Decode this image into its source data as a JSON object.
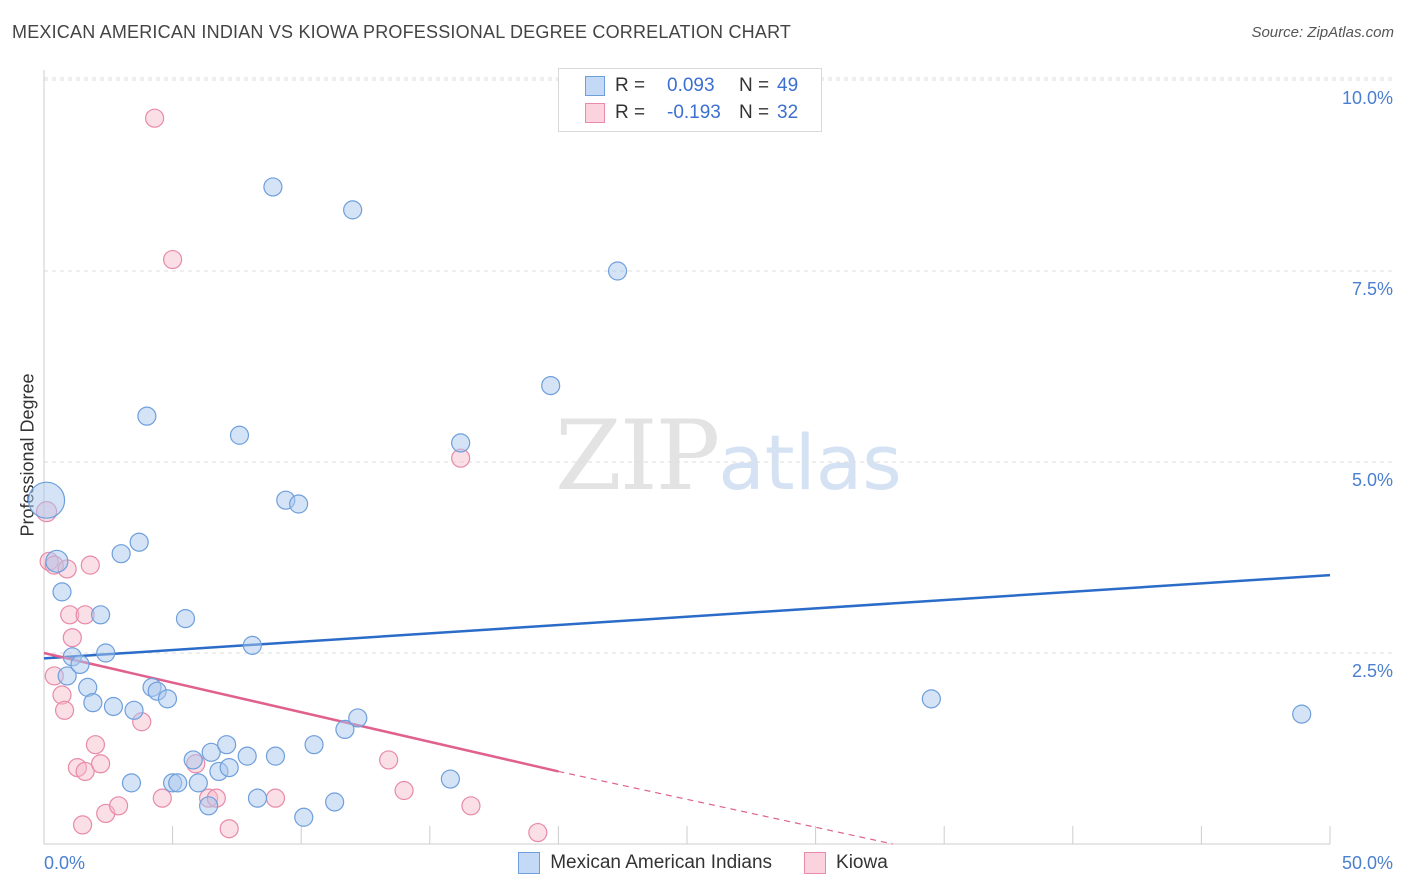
{
  "title": "MEXICAN AMERICAN INDIAN VS KIOWA PROFESSIONAL DEGREE CORRELATION CHART",
  "source": "Source: ZipAtlas.com",
  "watermark": {
    "zip": "ZIP",
    "atlas": "atlas"
  },
  "legend": {
    "rows": [
      {
        "r_label": "R =",
        "r_value": "0.093",
        "n_label": "N =",
        "n_value": "49"
      },
      {
        "r_label": "R =",
        "r_value": "-0.193",
        "n_label": "N =",
        "n_value": "32"
      }
    ]
  },
  "colors": {
    "blue_fill": "#aac8ee",
    "blue_stroke": "#6e9fdc",
    "blue_line": "#2b6cc9",
    "pink_fill": "#f5b8ca",
    "pink_stroke": "#e88aa8",
    "pink_line": "#e0608e",
    "grid": "#dddddd",
    "tick_text": "#4a7fd0"
  },
  "chart_data": {
    "type": "scatter",
    "title": "MEXICAN AMERICAN INDIAN VS KIOWA PROFESSIONAL DEGREE CORRELATION CHART",
    "xlabel": "",
    "ylabel": "Professional Degree",
    "xlim": [
      0,
      50
    ],
    "ylim": [
      0,
      10.4
    ],
    "x_tick_labels": [
      {
        "value": 0,
        "label": "0.0%"
      },
      {
        "value": 50,
        "label": "50.0%"
      }
    ],
    "y_tick_labels": [
      {
        "value": 2.5,
        "label": "2.5%"
      },
      {
        "value": 5.0,
        "label": "5.0%"
      },
      {
        "value": 7.5,
        "label": "7.5%"
      },
      {
        "value": 10.0,
        "label": "10.0%"
      }
    ],
    "grid": true,
    "legend_position": "bottom",
    "series": [
      {
        "name": "Mexican American Indians",
        "color": "#aac8ee",
        "r": 0.093,
        "n": 49,
        "trend": {
          "x0": 0,
          "y0": 2.43,
          "x1": 50,
          "y1": 3.52
        },
        "points": [
          [
            0.1,
            4.5,
            18
          ],
          [
            0.5,
            3.7,
            11
          ],
          [
            0.7,
            3.3,
            9
          ],
          [
            0.9,
            2.2,
            9
          ],
          [
            1.1,
            2.45,
            9
          ],
          [
            1.4,
            2.35,
            9
          ],
          [
            1.7,
            2.05,
            9
          ],
          [
            1.9,
            1.85,
            9
          ],
          [
            2.2,
            3.0,
            9
          ],
          [
            2.4,
            2.5,
            9
          ],
          [
            2.7,
            1.8,
            9
          ],
          [
            3.0,
            3.8,
            9
          ],
          [
            3.4,
            0.8,
            9
          ],
          [
            3.5,
            1.75,
            9
          ],
          [
            3.7,
            3.95,
            9
          ],
          [
            4.0,
            5.6,
            9
          ],
          [
            4.2,
            2.05,
            9
          ],
          [
            4.4,
            2.0,
            9
          ],
          [
            4.8,
            1.9,
            9
          ],
          [
            5.0,
            0.8,
            9
          ],
          [
            5.2,
            0.8,
            9
          ],
          [
            5.5,
            2.95,
            9
          ],
          [
            5.8,
            1.1,
            9
          ],
          [
            6.0,
            0.8,
            9
          ],
          [
            6.4,
            0.5,
            9
          ],
          [
            6.5,
            1.2,
            9
          ],
          [
            6.8,
            0.95,
            9
          ],
          [
            7.1,
            1.3,
            9
          ],
          [
            7.2,
            1.0,
            9
          ],
          [
            7.6,
            5.35,
            9
          ],
          [
            7.9,
            1.15,
            9
          ],
          [
            8.1,
            2.6,
            9
          ],
          [
            8.3,
            0.6,
            9
          ],
          [
            8.9,
            8.6,
            9
          ],
          [
            9.0,
            1.15,
            9
          ],
          [
            9.4,
            4.5,
            9
          ],
          [
            9.9,
            4.45,
            9
          ],
          [
            10.1,
            0.35,
            9
          ],
          [
            10.5,
            1.3,
            9
          ],
          [
            11.3,
            0.55,
            9
          ],
          [
            12.0,
            8.3,
            9
          ],
          [
            11.7,
            1.5,
            9
          ],
          [
            12.2,
            1.65,
            9
          ],
          [
            15.8,
            0.85,
            9
          ],
          [
            16.2,
            5.25,
            9
          ],
          [
            19.7,
            6.0,
            9
          ],
          [
            22.3,
            7.5,
            9
          ],
          [
            34.5,
            1.9,
            9
          ],
          [
            48.9,
            1.7,
            9
          ]
        ]
      },
      {
        "name": "Kiowa",
        "color": "#f5b8ca",
        "r": -0.193,
        "n": 32,
        "trend": {
          "x0": 0,
          "y0": 2.5,
          "x1": 20,
          "y1": 0.95,
          "dash_to_x": 33,
          "dash_to_y": 0.0
        },
        "points": [
          [
            0.1,
            4.35,
            10
          ],
          [
            0.2,
            3.7,
            9
          ],
          [
            0.4,
            3.65,
            9
          ],
          [
            0.4,
            2.2,
            9
          ],
          [
            0.7,
            1.95,
            9
          ],
          [
            0.8,
            1.75,
            9
          ],
          [
            0.9,
            3.6,
            9
          ],
          [
            1.0,
            3.0,
            9
          ],
          [
            1.1,
            2.7,
            9
          ],
          [
            1.3,
            1.0,
            9
          ],
          [
            1.5,
            0.25,
            9
          ],
          [
            1.6,
            0.95,
            9
          ],
          [
            1.6,
            3.0,
            9
          ],
          [
            1.8,
            3.65,
            9
          ],
          [
            2.0,
            1.3,
            9
          ],
          [
            2.2,
            1.05,
            9
          ],
          [
            2.4,
            0.4,
            9
          ],
          [
            2.9,
            0.5,
            9
          ],
          [
            3.8,
            1.6,
            9
          ],
          [
            4.3,
            9.5,
            9
          ],
          [
            4.6,
            0.6,
            9
          ],
          [
            5.0,
            7.65,
            9
          ],
          [
            5.9,
            1.05,
            9
          ],
          [
            6.4,
            0.6,
            9
          ],
          [
            6.7,
            0.6,
            9
          ],
          [
            7.2,
            0.2,
            9
          ],
          [
            9.0,
            0.6,
            9
          ],
          [
            13.4,
            1.1,
            9
          ],
          [
            14.0,
            0.7,
            9
          ],
          [
            16.2,
            5.05,
            9
          ],
          [
            16.6,
            0.5,
            9
          ],
          [
            19.2,
            0.15,
            9
          ]
        ]
      }
    ]
  }
}
